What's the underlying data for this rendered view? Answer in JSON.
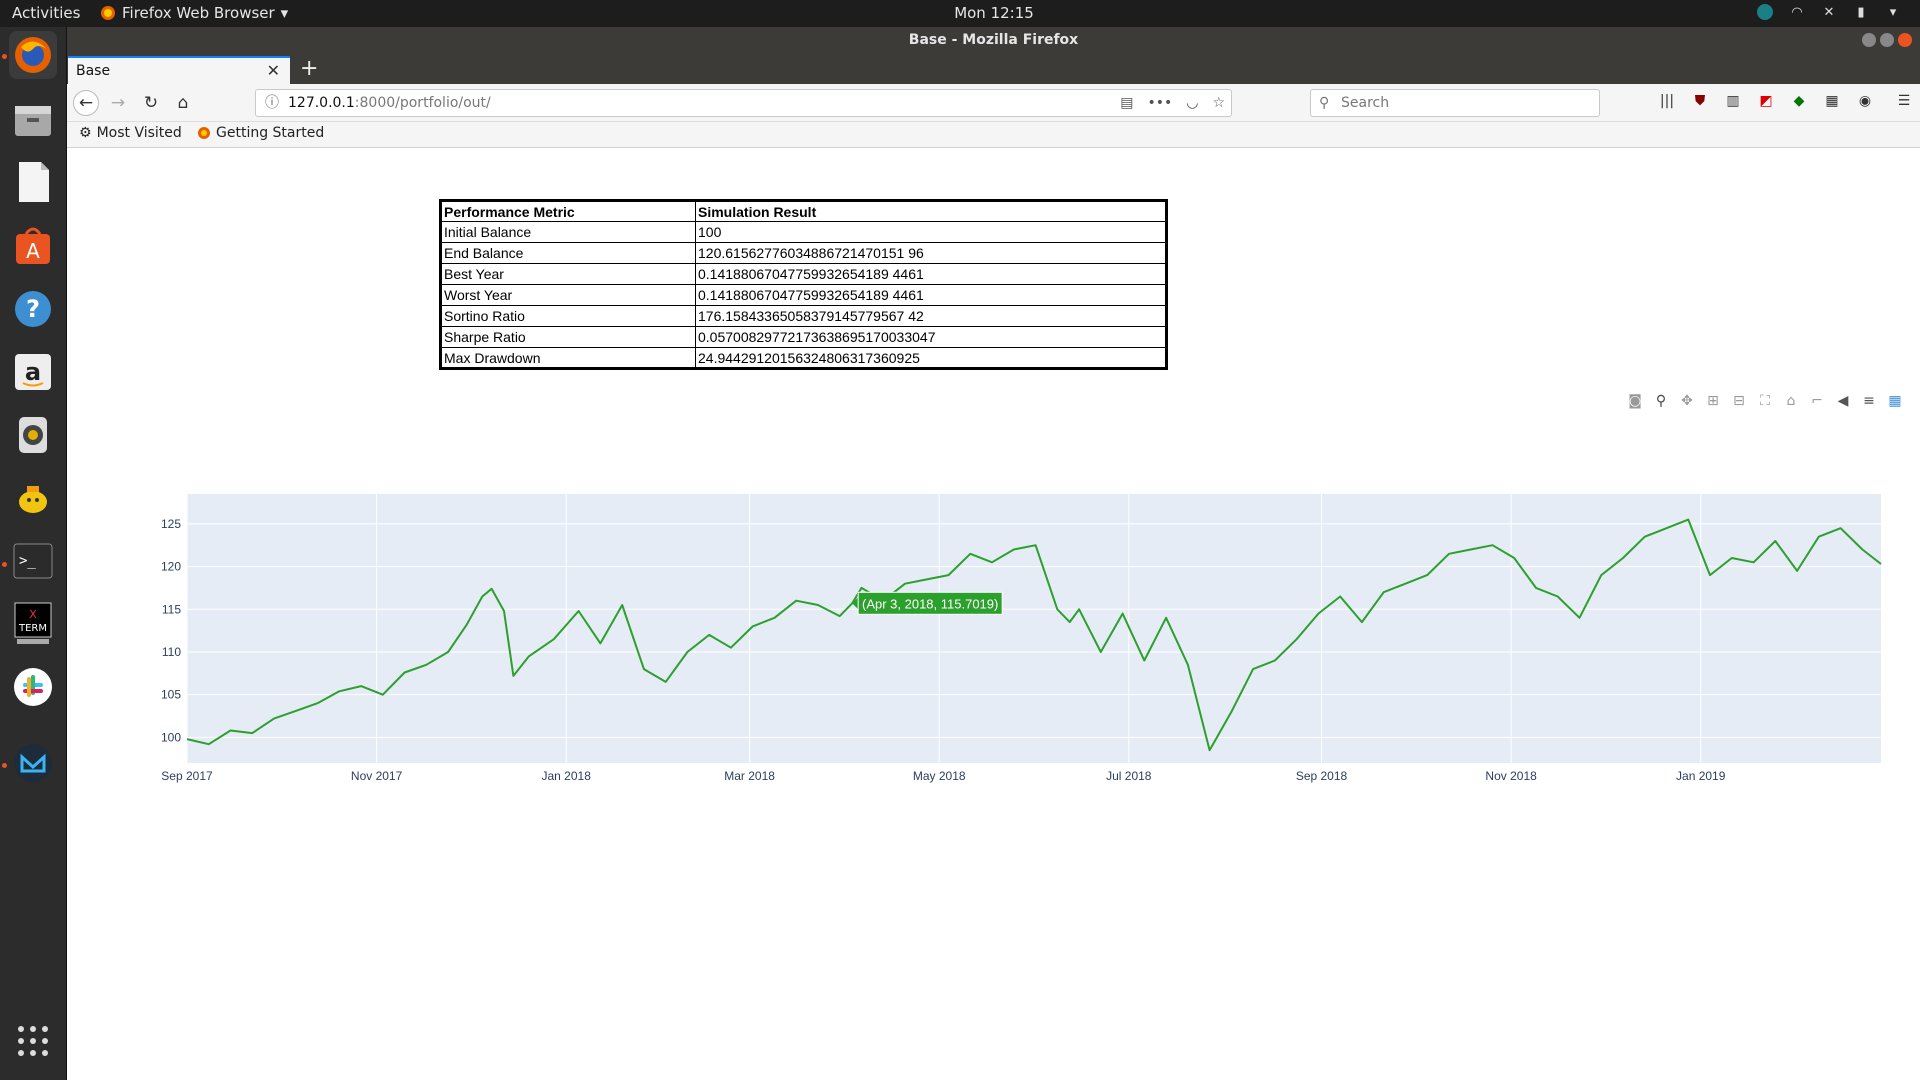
{
  "system": {
    "activities": "Activities",
    "app_name": "Firefox Web Browser",
    "clock": "Mon 12:15"
  },
  "window": {
    "title": "Base - Mozilla Firefox"
  },
  "tab": {
    "title": "Base"
  },
  "url": {
    "host": "127.0.0.1",
    "rest": ":8000/portfolio/out/"
  },
  "search": {
    "placeholder": "Search"
  },
  "bookmarks": [
    {
      "label": "Most Visited"
    },
    {
      "label": "Getting Started"
    }
  ],
  "metrics": {
    "headers": [
      "Performance Metric",
      "Simulation Result"
    ],
    "rows": [
      [
        "Initial Balance",
        "100"
      ],
      [
        "End Balance",
        "120.61562776034886721470151 96"
      ],
      [
        "Best Year",
        "0.14188067047759932654189 4461"
      ],
      [
        "Worst Year",
        "0.14188067047759932654189 4461"
      ],
      [
        "Sortino Ratio",
        "176.15843365058379145779567 42"
      ],
      [
        "Sharpe Ratio",
        "0.05700829772173638695170033047"
      ],
      [
        "Max Drawdown",
        "24.94429120156324806317360925"
      ]
    ]
  },
  "chart_data": {
    "type": "line",
    "line_color": "#2ca02c",
    "background": "#e5ecf6",
    "yticks": [
      100,
      105,
      110,
      115,
      120,
      125
    ],
    "ylim": [
      97,
      128.5
    ],
    "xticks": [
      "Sep 2017",
      "Nov 2017",
      "Jan 2018",
      "Mar 2018",
      "May 2018",
      "Jul 2018",
      "Sep 2018",
      "Nov 2018",
      "Jan 2019"
    ],
    "xlim": [
      "2017-09-01",
      "2019-02-28"
    ],
    "series": [
      {
        "x": [
          "2017-09-01",
          "2017-09-08",
          "2017-09-15",
          "2017-09-22",
          "2017-09-29",
          "2017-10-06",
          "2017-10-13",
          "2017-10-20",
          "2017-10-27",
          "2017-11-03",
          "2017-11-10",
          "2017-11-17",
          "2017-11-24",
          "2017-11-30",
          "2017-12-05",
          "2017-12-08",
          "2017-12-12",
          "2017-12-15",
          "2017-12-20",
          "2017-12-28",
          "2018-01-05",
          "2018-01-12",
          "2018-01-19",
          "2018-01-26",
          "2018-02-02",
          "2018-02-09",
          "2018-02-16",
          "2018-02-23",
          "2018-03-02",
          "2018-03-09",
          "2018-03-16",
          "2018-03-23",
          "2018-03-30",
          "2018-04-03",
          "2018-04-06",
          "2018-04-13",
          "2018-04-20",
          "2018-04-27",
          "2018-05-04",
          "2018-05-11",
          "2018-05-18",
          "2018-05-25",
          "2018-06-01",
          "2018-06-08",
          "2018-06-12",
          "2018-06-15",
          "2018-06-22",
          "2018-06-29",
          "2018-07-06",
          "2018-07-13",
          "2018-07-20",
          "2018-07-27",
          "2018-08-03",
          "2018-08-10",
          "2018-08-17",
          "2018-08-24",
          "2018-08-31",
          "2018-09-07",
          "2018-09-14",
          "2018-09-21",
          "2018-09-28",
          "2018-10-05",
          "2018-10-12",
          "2018-10-19",
          "2018-10-26",
          "2018-11-02",
          "2018-11-09",
          "2018-11-16",
          "2018-11-23",
          "2018-11-30",
          "2018-12-07",
          "2018-12-14",
          "2018-12-21",
          "2018-12-28",
          "2019-01-04",
          "2019-01-11",
          "2019-01-18",
          "2019-01-25",
          "2019-02-01",
          "2019-02-08",
          "2019-02-15",
          "2019-02-22",
          "2019-02-28"
        ],
        "y": [
          99.8,
          99.2,
          100.8,
          100.5,
          102.2,
          103.1,
          104.0,
          105.4,
          106.0,
          105.0,
          107.6,
          108.5,
          110.0,
          113.2,
          116.5,
          117.4,
          114.8,
          107.2,
          109.5,
          111.5,
          114.8,
          111.0,
          115.5,
          108.0,
          106.5,
          110.0,
          112.0,
          110.5,
          113.0,
          114.0,
          116.0,
          115.5,
          114.2,
          115.7,
          117.5,
          116.0,
          118.0,
          118.5,
          119.0,
          121.5,
          120.5,
          122.0,
          122.5,
          115.0,
          113.5,
          115.0,
          110.0,
          114.5,
          109.0,
          114.0,
          108.5,
          98.5,
          103.0,
          108.0,
          109.0,
          111.5,
          114.5,
          116.5,
          113.5,
          117.0,
          118.0,
          119.0,
          121.5,
          122.0,
          122.5,
          121.0,
          117.5,
          116.5,
          114.0,
          119.0,
          121.0,
          123.5,
          124.5,
          125.5,
          119.0,
          121.0,
          120.5,
          123.0,
          119.5,
          123.5,
          124.5,
          122.0,
          120.3
        ]
      }
    ],
    "tooltip": {
      "text": "(Apr 3, 2018, 115.7019)",
      "x": "2018-04-03",
      "y": 115.7019
    }
  }
}
